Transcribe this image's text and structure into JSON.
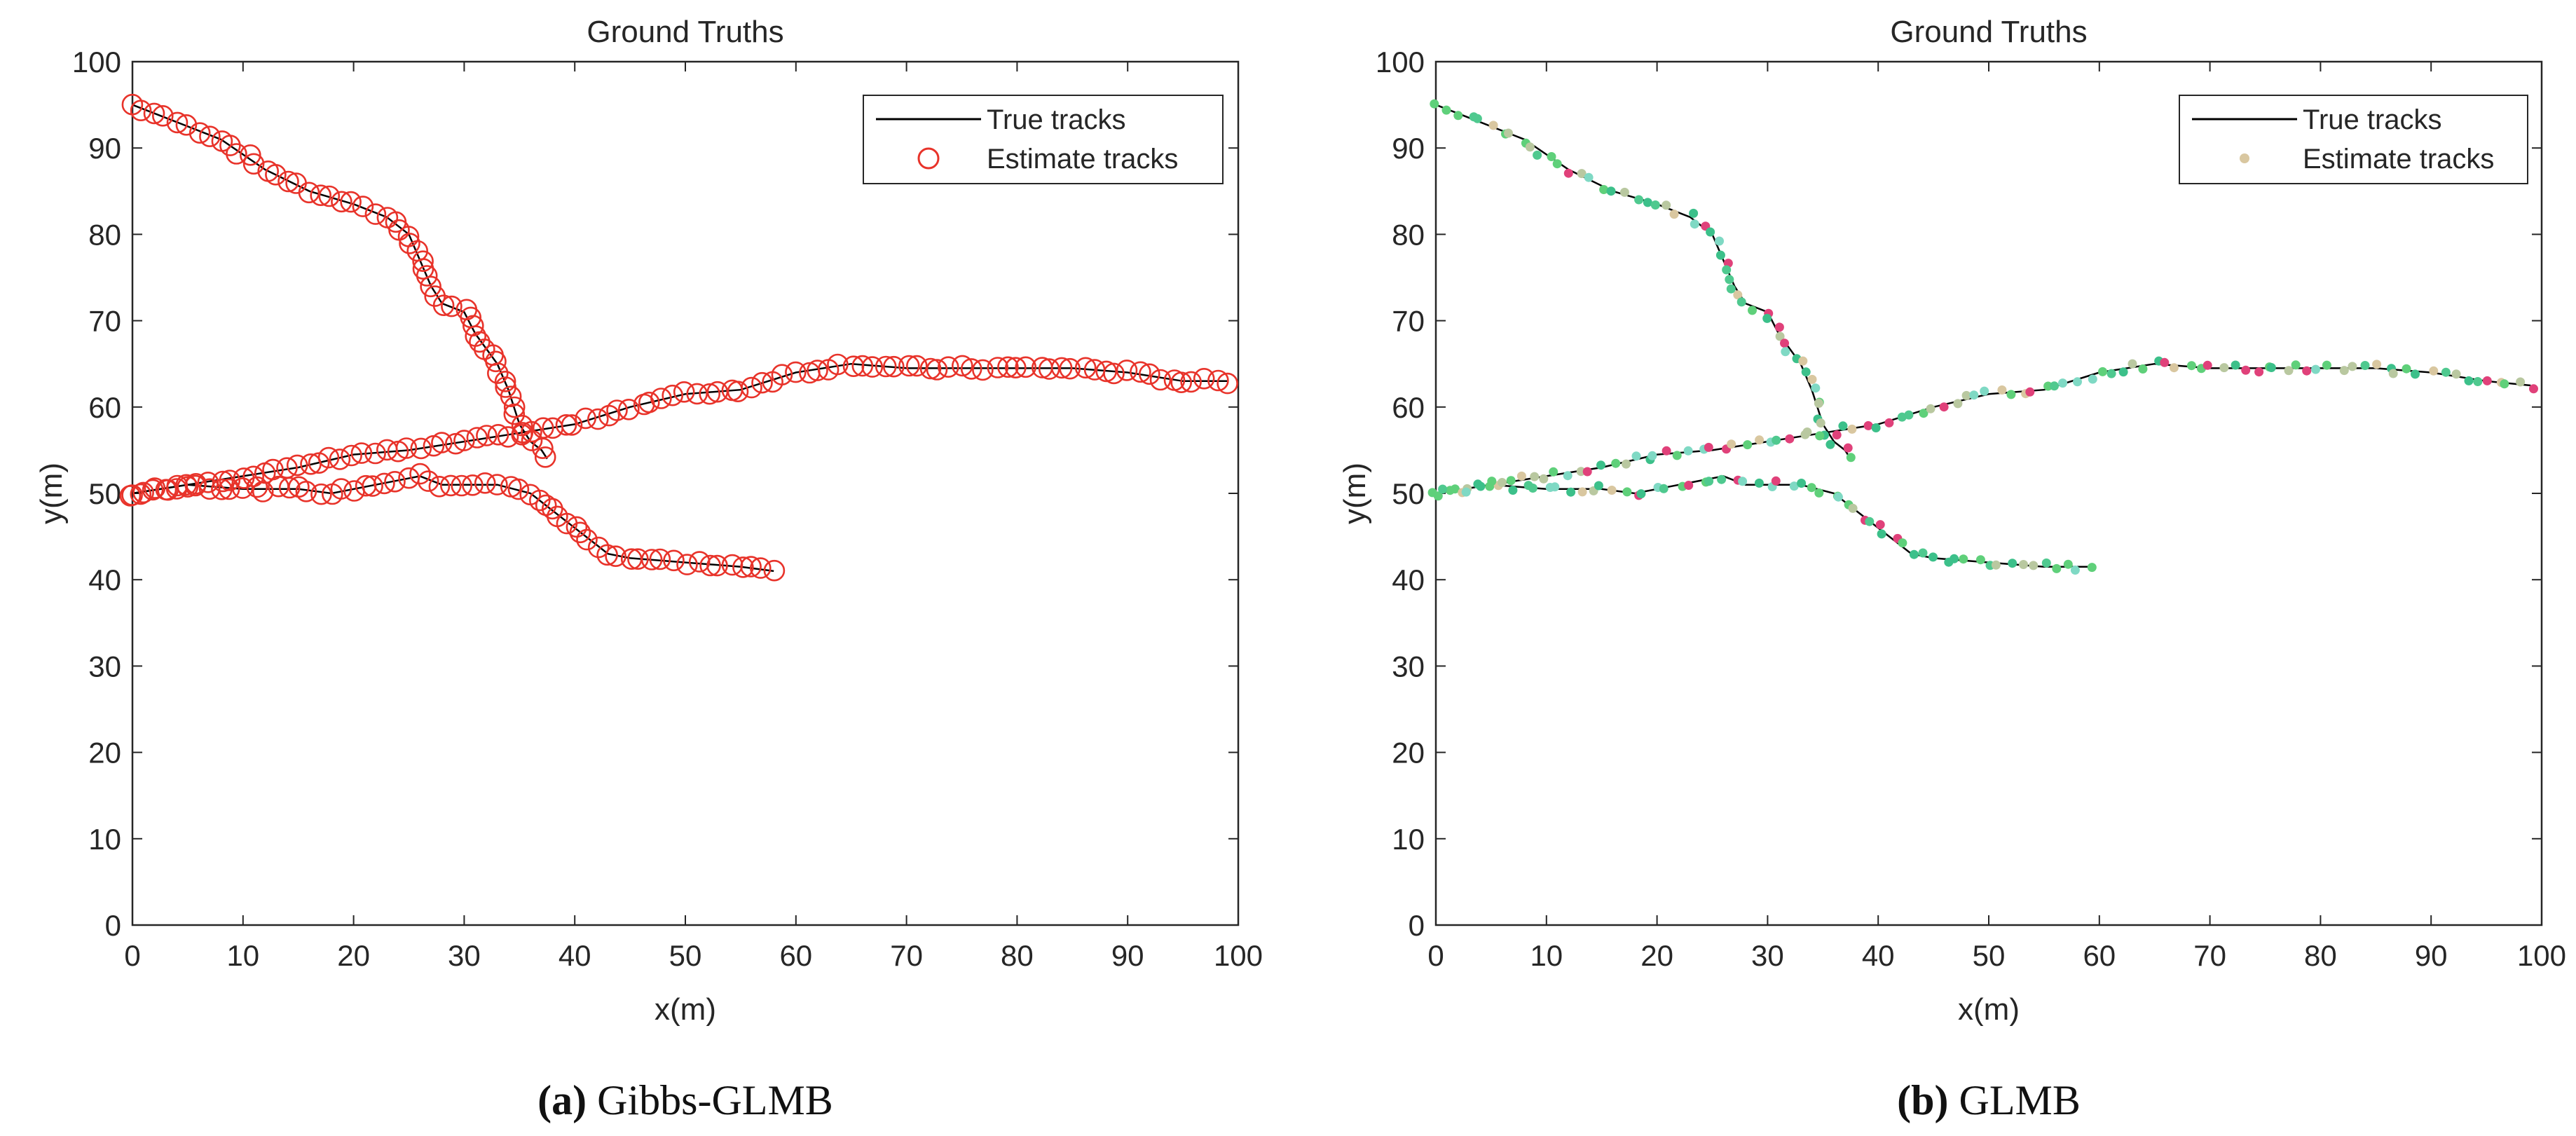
{
  "colors": {
    "true_track": "#000000",
    "estimate_a": "#e8332a",
    "axis": "#262626",
    "estimate_b_palette": [
      "#5fd07a",
      "#4fc98f",
      "#d9c7a0",
      "#e0417a",
      "#7fd9c4",
      "#3cc08a",
      "#b9c8a0"
    ]
  },
  "chart_data": [
    {
      "type": "line",
      "panel_id": "a",
      "title": "Ground Truths",
      "xlabel": "x(m)",
      "ylabel": "y(m)",
      "xlim": [
        0,
        100
      ],
      "ylim": [
        0,
        100
      ],
      "xticks": [
        0,
        10,
        20,
        30,
        40,
        50,
        60,
        70,
        80,
        90,
        100
      ],
      "yticks": [
        0,
        10,
        20,
        30,
        40,
        50,
        60,
        70,
        80,
        90,
        100
      ],
      "legend": {
        "position": "top-right",
        "entries": [
          "True tracks",
          "Estimate tracks"
        ]
      },
      "marker": "open-circle",
      "caption_letter": "(a)",
      "caption_text": " Gibbs-GLMB",
      "series": [
        {
          "name": "True tracks",
          "tracks": [
            [
              [
                0,
                95
              ],
              [
                4,
                93
              ],
              [
                8,
                91
              ],
              [
                12,
                87.5
              ],
              [
                16,
                85
              ],
              [
                20,
                83.5
              ],
              [
                23,
                82
              ],
              [
                25,
                80
              ],
              [
                26,
                77
              ],
              [
                27,
                74
              ],
              [
                28,
                72
              ],
              [
                30,
                71
              ],
              [
                31,
                68.5
              ],
              [
                33,
                65
              ],
              [
                34,
                62
              ],
              [
                35,
                58
              ],
              [
                36,
                56
              ],
              [
                37,
                55
              ],
              [
                37.5,
                54
              ]
            ],
            [
              [
                0,
                50
              ],
              [
                5,
                51
              ],
              [
                10,
                52
              ],
              [
                15,
                53
              ],
              [
                20,
                54.5
              ],
              [
                25,
                55
              ],
              [
                30,
                56
              ],
              [
                35,
                57
              ],
              [
                40,
                58
              ],
              [
                45,
                60
              ],
              [
                50,
                61.5
              ],
              [
                55,
                62
              ],
              [
                60,
                64
              ],
              [
                65,
                65
              ],
              [
                70,
                64.5
              ],
              [
                75,
                64.5
              ],
              [
                80,
                64.5
              ],
              [
                85,
                64.5
              ],
              [
                90,
                64
              ],
              [
                95,
                63
              ],
              [
                99,
                63
              ]
            ],
            [
              [
                0,
                50
              ],
              [
                5,
                51
              ],
              [
                10,
                50.5
              ],
              [
                15,
                50.5
              ],
              [
                18,
                50
              ],
              [
                22,
                51
              ],
              [
                26,
                52
              ],
              [
                28,
                51
              ],
              [
                33,
                51
              ],
              [
                36,
                50
              ],
              [
                38,
                48
              ],
              [
                40,
                46
              ],
              [
                42,
                44
              ],
              [
                43,
                43
              ],
              [
                45,
                42.5
              ],
              [
                50,
                42
              ],
              [
                55,
                41.5
              ],
              [
                58,
                41
              ]
            ]
          ]
        },
        {
          "name": "Estimate tracks",
          "tracks": [
            [
              [
                0,
                95
              ],
              [
                4,
                93
              ],
              [
                8,
                91
              ],
              [
                12,
                87.5
              ],
              [
                16,
                85
              ],
              [
                20,
                83.5
              ],
              [
                23,
                82
              ],
              [
                25,
                80
              ],
              [
                26,
                77
              ],
              [
                27,
                74
              ],
              [
                28,
                72
              ],
              [
                30,
                71
              ],
              [
                31,
                68.5
              ],
              [
                33,
                65
              ],
              [
                34,
                62
              ],
              [
                35,
                58
              ],
              [
                36,
                56
              ],
              [
                37,
                55
              ],
              [
                37.5,
                54
              ]
            ],
            [
              [
                0,
                50
              ],
              [
                5,
                51
              ],
              [
                10,
                52
              ],
              [
                15,
                53
              ],
              [
                20,
                54.5
              ],
              [
                25,
                55
              ],
              [
                30,
                56
              ],
              [
                35,
                57
              ],
              [
                40,
                58
              ],
              [
                45,
                60
              ],
              [
                50,
                61.5
              ],
              [
                55,
                62
              ],
              [
                60,
                64
              ],
              [
                65,
                65
              ],
              [
                70,
                64.5
              ],
              [
                75,
                64.5
              ],
              [
                80,
                64.5
              ],
              [
                85,
                64.5
              ],
              [
                90,
                64
              ],
              [
                95,
                63
              ],
              [
                99,
                63
              ]
            ],
            [
              [
                0,
                50
              ],
              [
                5,
                51
              ],
              [
                10,
                50.5
              ],
              [
                15,
                50.5
              ],
              [
                18,
                50
              ],
              [
                22,
                51
              ],
              [
                26,
                52
              ],
              [
                28,
                51
              ],
              [
                33,
                51
              ],
              [
                36,
                50
              ],
              [
                38,
                48
              ],
              [
                40,
                46
              ],
              [
                42,
                44
              ],
              [
                43,
                43
              ],
              [
                45,
                42.5
              ],
              [
                50,
                42
              ],
              [
                55,
                41.5
              ],
              [
                58,
                41
              ]
            ]
          ]
        }
      ]
    },
    {
      "type": "line",
      "panel_id": "b",
      "title": "Ground Truths",
      "xlabel": "x(m)",
      "ylabel": "y(m)",
      "xlim": [
        0,
        100
      ],
      "ylim": [
        0,
        100
      ],
      "xticks": [
        0,
        10,
        20,
        30,
        40,
        50,
        60,
        70,
        80,
        90,
        100
      ],
      "yticks": [
        0,
        10,
        20,
        30,
        40,
        50,
        60,
        70,
        80,
        90,
        100
      ],
      "legend": {
        "position": "top-right",
        "entries": [
          "True tracks",
          "Estimate tracks"
        ]
      },
      "marker": "filled-dot",
      "caption_letter": "(b)",
      "caption_text": " GLMB",
      "series": [
        {
          "name": "True tracks",
          "tracks": [
            [
              [
                0,
                95
              ],
              [
                4,
                93
              ],
              [
                8,
                91
              ],
              [
                12,
                87.5
              ],
              [
                16,
                85
              ],
              [
                20,
                83.5
              ],
              [
                23,
                82
              ],
              [
                25,
                80
              ],
              [
                26,
                77
              ],
              [
                27,
                74
              ],
              [
                28,
                72
              ],
              [
                30,
                71
              ],
              [
                31,
                68.5
              ],
              [
                33,
                65
              ],
              [
                34,
                62
              ],
              [
                35,
                58
              ],
              [
                36,
                56
              ],
              [
                37,
                55
              ],
              [
                37.5,
                54
              ]
            ],
            [
              [
                0,
                50
              ],
              [
                5,
                51
              ],
              [
                10,
                52
              ],
              [
                15,
                53
              ],
              [
                20,
                54.5
              ],
              [
                25,
                55
              ],
              [
                30,
                56
              ],
              [
                35,
                57
              ],
              [
                40,
                58
              ],
              [
                45,
                60
              ],
              [
                50,
                61.5
              ],
              [
                55,
                62
              ],
              [
                60,
                64
              ],
              [
                65,
                65
              ],
              [
                70,
                64.5
              ],
              [
                75,
                64.5
              ],
              [
                80,
                64.5
              ],
              [
                85,
                64.5
              ],
              [
                90,
                64
              ],
              [
                95,
                63
              ],
              [
                99,
                62.5
              ]
            ],
            [
              [
                0,
                50
              ],
              [
                5,
                51
              ],
              [
                10,
                50.5
              ],
              [
                15,
                50.5
              ],
              [
                18,
                50
              ],
              [
                22,
                51
              ],
              [
                26,
                52
              ],
              [
                28,
                51
              ],
              [
                33,
                51
              ],
              [
                36,
                50
              ],
              [
                38,
                48
              ],
              [
                40,
                46
              ],
              [
                42,
                44
              ],
              [
                43,
                43
              ],
              [
                45,
                42.5
              ],
              [
                50,
                42
              ],
              [
                55,
                41.5
              ],
              [
                59,
                41.5
              ]
            ]
          ]
        },
        {
          "name": "Estimate tracks",
          "tracks": [
            [
              [
                0,
                95
              ],
              [
                4,
                93
              ],
              [
                8,
                91
              ],
              [
                12,
                87.5
              ],
              [
                16,
                85
              ],
              [
                20,
                83.5
              ],
              [
                23,
                82
              ],
              [
                25,
                80
              ],
              [
                26,
                77
              ],
              [
                27,
                74
              ],
              [
                28,
                72
              ],
              [
                30,
                71
              ],
              [
                31,
                68.5
              ],
              [
                33,
                65
              ],
              [
                34,
                62
              ],
              [
                35,
                58
              ],
              [
                36,
                56
              ],
              [
                37,
                55
              ],
              [
                37.5,
                54
              ]
            ],
            [
              [
                0,
                50
              ],
              [
                5,
                51
              ],
              [
                10,
                52
              ],
              [
                15,
                53
              ],
              [
                20,
                54.5
              ],
              [
                25,
                55
              ],
              [
                30,
                56
              ],
              [
                35,
                57
              ],
              [
                40,
                58
              ],
              [
                45,
                60
              ],
              [
                50,
                61.5
              ],
              [
                55,
                62
              ],
              [
                60,
                64
              ],
              [
                65,
                65
              ],
              [
                70,
                64.5
              ],
              [
                75,
                64.5
              ],
              [
                80,
                64.5
              ],
              [
                85,
                64.5
              ],
              [
                90,
                64
              ],
              [
                95,
                63
              ],
              [
                99,
                62.5
              ]
            ],
            [
              [
                0,
                50
              ],
              [
                5,
                51
              ],
              [
                10,
                50.5
              ],
              [
                15,
                50.5
              ],
              [
                18,
                50
              ],
              [
                22,
                51
              ],
              [
                26,
                52
              ],
              [
                28,
                51
              ],
              [
                33,
                51
              ],
              [
                36,
                50
              ],
              [
                38,
                48
              ],
              [
                40,
                46
              ],
              [
                42,
                44
              ],
              [
                43,
                43
              ],
              [
                45,
                42.5
              ],
              [
                50,
                42
              ],
              [
                55,
                41.5
              ],
              [
                59,
                41.5
              ]
            ]
          ]
        }
      ]
    }
  ]
}
